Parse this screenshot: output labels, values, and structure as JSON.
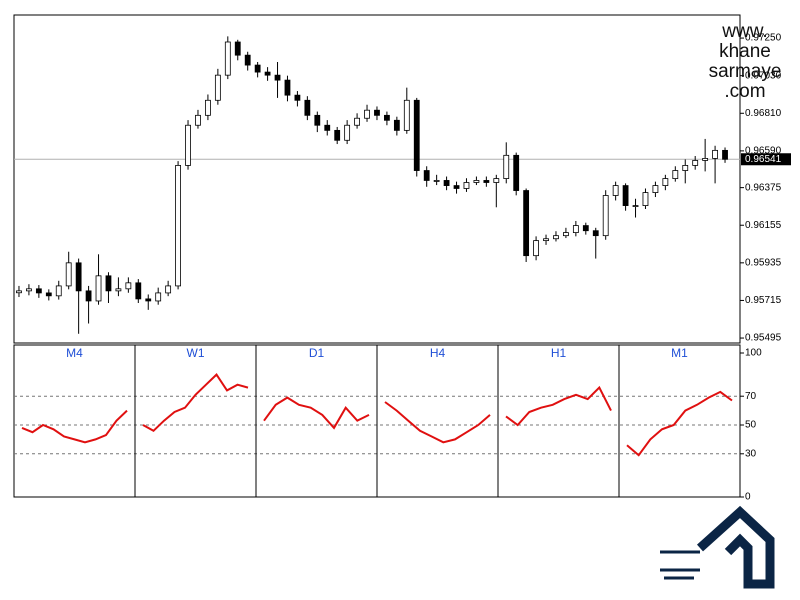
{
  "chart_data": [
    {
      "type": "candlestick",
      "ylim": [
        0.95466,
        0.97385
      ],
      "yticks": [
        {
          "value": 0.95495,
          "label": "0.95495"
        },
        {
          "value": 0.95715,
          "label": "0.95715"
        },
        {
          "value": 0.95935,
          "label": "0.95935"
        },
        {
          "value": 0.96155,
          "label": "0.96155"
        },
        {
          "value": 0.96375,
          "label": "0.96375"
        },
        {
          "value": 0.9659,
          "label": "0.96590"
        },
        {
          "value": 0.9681,
          "label": "0.96810"
        },
        {
          "value": 0.9703,
          "label": "0.97030"
        },
        {
          "value": 0.9725,
          "label": "0.97250"
        }
      ],
      "last_price": {
        "value": 0.96541,
        "label": "0.96541"
      },
      "bull_color": "#ffffff",
      "bear_color": "#000000",
      "open": [
        0.9576,
        0.95771,
        0.95783,
        0.95759,
        0.95742,
        0.958,
        0.95935,
        0.95771,
        0.95712,
        0.95859,
        0.95771,
        0.95783,
        0.95818,
        0.95724,
        0.95712,
        0.95759,
        0.958,
        0.96505,
        0.9674,
        0.96798,
        0.96886,
        0.97033,
        0.97227,
        0.9715,
        0.97092,
        0.97051,
        0.97033,
        0.97004,
        0.96916,
        0.96886,
        0.96798,
        0.9674,
        0.9671,
        0.96652,
        0.9674,
        0.96781,
        0.96828,
        0.96798,
        0.96769,
        0.9671,
        0.96886,
        0.96475,
        0.96417,
        0.96417,
        0.96387,
        0.9637,
        0.96405,
        0.96417,
        0.96405,
        0.96428,
        0.96564,
        0.96358,
        0.95977,
        0.96065,
        0.96076,
        0.96094,
        0.96112,
        0.96153,
        0.96123,
        0.96094,
        0.96329,
        0.96387,
        0.9627,
        0.9627,
        0.96346,
        0.96387,
        0.96428,
        0.96475,
        0.96505,
        0.96534,
        0.96546,
        0.96593
      ],
      "high": [
        0.958,
        0.9581,
        0.95805,
        0.9578,
        0.9583,
        0.96,
        0.9596,
        0.958,
        0.95985,
        0.9588,
        0.9585,
        0.9585,
        0.9584,
        0.9575,
        0.9579,
        0.9583,
        0.9653,
        0.9677,
        0.9683,
        0.9692,
        0.9707,
        0.9726,
        0.9724,
        0.9717,
        0.9711,
        0.9708,
        0.9711,
        0.9703,
        0.9694,
        0.9691,
        0.9682,
        0.9677,
        0.9673,
        0.9677,
        0.9681,
        0.9686,
        0.9685,
        0.9682,
        0.9679,
        0.9696,
        0.969,
        0.965,
        0.9645,
        0.9644,
        0.9641,
        0.9643,
        0.9644,
        0.9644,
        0.9645,
        0.9664,
        0.9658,
        0.9637,
        0.9609,
        0.961,
        0.9612,
        0.9614,
        0.9618,
        0.9617,
        0.9614,
        0.9636,
        0.9641,
        0.964,
        0.9631,
        0.9637,
        0.9641,
        0.9645,
        0.965,
        0.9654,
        0.9656,
        0.9666,
        0.9662,
        0.9661
      ],
      "low": [
        0.95735,
        0.95745,
        0.9573,
        0.95715,
        0.9572,
        0.9578,
        0.9552,
        0.9558,
        0.9569,
        0.957,
        0.9574,
        0.9576,
        0.957,
        0.9566,
        0.9569,
        0.9574,
        0.9578,
        0.9648,
        0.9672,
        0.9677,
        0.9686,
        0.9701,
        0.9712,
        0.9706,
        0.9702,
        0.97,
        0.969,
        0.9688,
        0.9685,
        0.9677,
        0.967,
        0.9668,
        0.9663,
        0.9663,
        0.9672,
        0.9676,
        0.9677,
        0.9674,
        0.9668,
        0.9669,
        0.9644,
        0.9638,
        0.9639,
        0.9636,
        0.9634,
        0.9635,
        0.9639,
        0.9638,
        0.9626,
        0.964,
        0.9633,
        0.9594,
        0.9595,
        0.9604,
        0.9606,
        0.9608,
        0.9609,
        0.961,
        0.9596,
        0.9607,
        0.963,
        0.9624,
        0.962,
        0.9625,
        0.9632,
        0.9636,
        0.9641,
        0.964,
        0.9648,
        0.9647,
        0.964,
        0.9652
      ],
      "close": [
        0.95771,
        0.95783,
        0.95759,
        0.95742,
        0.958,
        0.95935,
        0.95771,
        0.95712,
        0.95859,
        0.95771,
        0.95783,
        0.95818,
        0.95724,
        0.95712,
        0.95759,
        0.958,
        0.96505,
        0.9674,
        0.96798,
        0.96886,
        0.97033,
        0.97227,
        0.9715,
        0.97092,
        0.97051,
        0.97033,
        0.97004,
        0.96916,
        0.96886,
        0.96798,
        0.9674,
        0.9671,
        0.96652,
        0.9674,
        0.96781,
        0.96828,
        0.96798,
        0.96769,
        0.9671,
        0.96886,
        0.96475,
        0.96417,
        0.96417,
        0.96387,
        0.9637,
        0.96405,
        0.96417,
        0.96405,
        0.96428,
        0.96564,
        0.96358,
        0.95977,
        0.96065,
        0.96076,
        0.96094,
        0.96112,
        0.96153,
        0.96123,
        0.96094,
        0.96329,
        0.96387,
        0.9627,
        0.9627,
        0.96346,
        0.96387,
        0.96428,
        0.96475,
        0.96505,
        0.96534,
        0.96546,
        0.96593,
        0.96541
      ]
    },
    {
      "type": "rsi-panels",
      "ylim": [
        0,
        100
      ],
      "yticks": [
        0,
        30,
        50,
        70,
        100
      ],
      "levels": [
        30,
        50,
        70
      ],
      "color": "#e01010",
      "label_color": "#1f4fd6",
      "panels": [
        {
          "name": "M4",
          "values": [
            48,
            45,
            50,
            47,
            42,
            40,
            38,
            40,
            43,
            53,
            60
          ]
        },
        {
          "name": "W1",
          "values": [
            50,
            46,
            53,
            59,
            62,
            71,
            78,
            85,
            74,
            78,
            76
          ]
        },
        {
          "name": "D1",
          "values": [
            53,
            64,
            69,
            64,
            62,
            57,
            48,
            62,
            53,
            57
          ]
        },
        {
          "name": "H4",
          "values": [
            66,
            60,
            53,
            46,
            42,
            38,
            40,
            45,
            50,
            57
          ]
        },
        {
          "name": "H1",
          "values": [
            56,
            50,
            59,
            62,
            64,
            68,
            71,
            68,
            76,
            60
          ]
        },
        {
          "name": "M1",
          "values": [
            36,
            29,
            40,
            47,
            50,
            60,
            64,
            69,
            73,
            67
          ]
        }
      ]
    }
  ],
  "watermark": {
    "lines": [
      "www.",
      "khane",
      "sarmaye",
      ".com"
    ]
  }
}
